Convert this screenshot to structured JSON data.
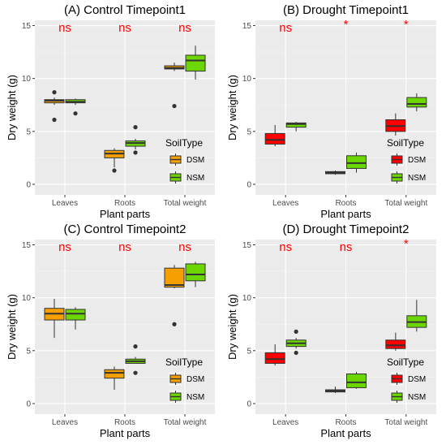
{
  "chart_data": [
    {
      "type": "box",
      "title": "(A) Control Timepoint1",
      "xlabel": "Plant parts",
      "ylabel": "Dry weight (g)",
      "ylim": [
        -1,
        15.5
      ],
      "yticks": [
        0,
        5,
        10,
        15
      ],
      "categories": [
        "Leaves",
        "Roots",
        "Total weight"
      ],
      "significance": [
        "ns",
        "ns",
        "ns"
      ],
      "legend_title": "SoilType",
      "series": [
        {
          "name": "DSM",
          "color": "#f5a000",
          "boxes": [
            {
              "min": 7.5,
              "q1": 7.7,
              "median": 7.9,
              "q3": 8.0,
              "max": 8.2,
              "outliers": [
                8.7,
                6.1
              ]
            },
            {
              "min": 1.6,
              "q1": 2.5,
              "median": 2.9,
              "q3": 3.2,
              "max": 3.4,
              "outliers": [
                1.3
              ]
            },
            {
              "min": 10.7,
              "q1": 10.9,
              "median": 11.0,
              "q3": 11.2,
              "max": 11.5,
              "outliers": [
                7.4
              ]
            }
          ]
        },
        {
          "name": "NSM",
          "color": "#6cd600",
          "boxes": [
            {
              "min": 7.5,
              "q1": 7.7,
              "median": 7.8,
              "q3": 8.0,
              "max": 8.1,
              "outliers": [
                6.7
              ]
            },
            {
              "min": 3.3,
              "q1": 3.6,
              "median": 3.9,
              "q3": 4.1,
              "max": 4.3,
              "outliers": [
                5.4,
                3.0
              ]
            },
            {
              "min": 9.9,
              "q1": 10.7,
              "median": 11.7,
              "q3": 12.2,
              "max": 13.1,
              "outliers": []
            }
          ]
        }
      ]
    },
    {
      "type": "box",
      "title": "(B) Drought Timepoint1",
      "xlabel": "Plant parts",
      "ylabel": "Dry weight (g)",
      "ylim": [
        -1,
        15.5
      ],
      "yticks": [
        0,
        5,
        10,
        15
      ],
      "categories": [
        "Leaves",
        "Roots",
        "Total weight"
      ],
      "significance": [
        "ns",
        "*",
        "*"
      ],
      "legend_title": "SoilType",
      "series": [
        {
          "name": "DSM",
          "color": "#ff0000",
          "boxes": [
            {
              "min": 3.6,
              "q1": 3.8,
              "median": 4.2,
              "q3": 4.8,
              "max": 5.6,
              "outliers": []
            },
            {
              "min": 0.9,
              "q1": 1.0,
              "median": 1.1,
              "q3": 1.2,
              "max": 1.3,
              "outliers": []
            },
            {
              "min": 4.6,
              "q1": 5.0,
              "median": 5.5,
              "q3": 6.1,
              "max": 6.7,
              "outliers": []
            }
          ]
        },
        {
          "name": "NSM",
          "color": "#6cd600",
          "boxes": [
            {
              "min": 5.0,
              "q1": 5.4,
              "median": 5.7,
              "q3": 5.8,
              "max": 5.9,
              "outliers": []
            },
            {
              "min": 1.1,
              "q1": 1.5,
              "median": 2.0,
              "q3": 2.7,
              "max": 3.0,
              "outliers": []
            },
            {
              "min": 6.9,
              "q1": 7.3,
              "median": 7.6,
              "q3": 8.2,
              "max": 8.6,
              "outliers": []
            }
          ]
        }
      ]
    },
    {
      "type": "box",
      "title": "(C) Control Timepoint2",
      "xlabel": "Plant parts",
      "ylabel": "Dry weight (g)",
      "ylim": [
        -1,
        15.5
      ],
      "yticks": [
        0,
        5,
        10,
        15
      ],
      "categories": [
        "Leaves",
        "Roots",
        "Total weight"
      ],
      "significance": [
        "ns",
        "ns",
        "ns"
      ],
      "legend_title": "SoilType",
      "series": [
        {
          "name": "DSM",
          "color": "#f5a000",
          "boxes": [
            {
              "min": 6.2,
              "q1": 7.9,
              "median": 8.5,
              "q3": 9.0,
              "max": 9.9,
              "outliers": []
            },
            {
              "min": 1.3,
              "q1": 2.4,
              "median": 2.9,
              "q3": 3.2,
              "max": 3.5,
              "outliers": []
            },
            {
              "min": 10.9,
              "q1": 11.0,
              "median": 11.2,
              "q3": 12.8,
              "max": 13.1,
              "outliers": [
                7.5
              ]
            }
          ]
        },
        {
          "name": "NSM",
          "color": "#6cd600",
          "boxes": [
            {
              "min": 7.0,
              "q1": 7.9,
              "median": 8.5,
              "q3": 8.9,
              "max": 9.1,
              "outliers": []
            },
            {
              "min": 3.8,
              "q1": 3.8,
              "median": 4.0,
              "q3": 4.2,
              "max": 4.4,
              "outliers": [
                5.4,
                2.9
              ]
            },
            {
              "min": 11.0,
              "q1": 11.6,
              "median": 12.2,
              "q3": 13.2,
              "max": 13.4,
              "outliers": []
            }
          ]
        }
      ]
    },
    {
      "type": "box",
      "title": "(D) Drought Timepoint2",
      "xlabel": "Plant parts",
      "ylabel": "Dry weight (g)",
      "ylim": [
        -1,
        15.5
      ],
      "yticks": [
        0,
        5,
        10,
        15
      ],
      "categories": [
        "Leaves",
        "Roots",
        "Total weight"
      ],
      "significance": [
        "ns",
        "ns",
        "*"
      ],
      "legend_title": "SoilType",
      "series": [
        {
          "name": "DSM",
          "color": "#ff0000",
          "boxes": [
            {
              "min": 3.6,
              "q1": 3.8,
              "median": 4.2,
              "q3": 4.8,
              "max": 5.6,
              "outliers": []
            },
            {
              "min": 1.0,
              "q1": 1.1,
              "median": 1.2,
              "q3": 1.3,
              "max": 1.6,
              "outliers": []
            },
            {
              "min": 5.0,
              "q1": 5.2,
              "median": 5.5,
              "q3": 6.0,
              "max": 6.7,
              "outliers": []
            }
          ]
        },
        {
          "name": "NSM",
          "color": "#6cd600",
          "boxes": [
            {
              "min": 5.2,
              "q1": 5.4,
              "median": 5.7,
              "q3": 6.0,
              "max": 6.2,
              "outliers": [
                6.8,
                4.8
              ]
            },
            {
              "min": 1.4,
              "q1": 1.5,
              "median": 2.0,
              "q3": 2.8,
              "max": 3.0,
              "outliers": []
            },
            {
              "min": 6.8,
              "q1": 7.2,
              "median": 7.7,
              "q3": 8.3,
              "max": 9.8,
              "outliers": []
            }
          ]
        }
      ]
    }
  ]
}
